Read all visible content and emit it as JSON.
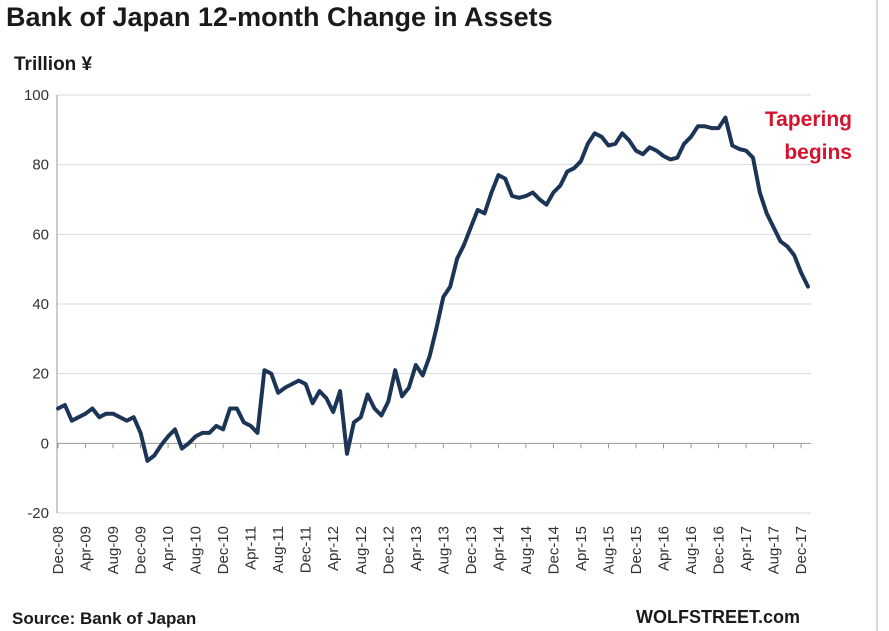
{
  "title": "Bank of Japan 12-month Change in Assets",
  "unit_label": "Trillion ¥",
  "source": "Source: Bank of Japan",
  "brand": "WOLFSTREET.com",
  "annotation": {
    "line1": "Tapering",
    "line2": "begins",
    "color": "#d4142f"
  },
  "colors": {
    "line": "#1c3557",
    "grid": "#d9d9d9",
    "axis": "#999999"
  },
  "chart_data": {
    "type": "line",
    "title": "Bank of Japan 12-month Change in Assets",
    "ylabel": "Trillion ¥",
    "xlabel": "",
    "ylim": [
      -20,
      100
    ],
    "yticks": [
      -20,
      0,
      20,
      40,
      60,
      80,
      100
    ],
    "grid": "horizontal",
    "x_tick_labels": [
      "Dec-08",
      "Apr-09",
      "Aug-09",
      "Dec-09",
      "Apr-10",
      "Aug-10",
      "Dec-10",
      "Apr-11",
      "Aug-11",
      "Dec-11",
      "Apr-12",
      "Aug-12",
      "Dec-12",
      "Apr-13",
      "Aug-13",
      "Dec-13",
      "Apr-14",
      "Aug-14",
      "Dec-14",
      "Apr-15",
      "Aug-15",
      "Dec-15",
      "Apr-16",
      "Aug-16",
      "Dec-16",
      "Apr-17",
      "Aug-17",
      "Dec-17"
    ],
    "series": [
      {
        "values": [
          10,
          11,
          6.5,
          7.5,
          8.5,
          10,
          7.5,
          8.5,
          8.5,
          7.5,
          6.5,
          7.5,
          3,
          -5,
          -3.5,
          -0.5,
          2,
          4,
          -1.5,
          0,
          2,
          3,
          3,
          5,
          4,
          10,
          10,
          6,
          5,
          3,
          21,
          20,
          14.5,
          16,
          17,
          18,
          17,
          11.5,
          15,
          13,
          9,
          15,
          -3,
          6,
          7.5,
          14,
          10,
          8,
          12,
          21,
          13.5,
          16,
          22.5,
          19.5,
          25,
          33,
          42,
          45,
          53,
          57,
          62,
          67,
          66,
          72,
          77,
          76,
          71,
          70.5,
          71,
          72,
          70,
          68.5,
          72,
          74,
          78,
          79,
          81,
          86,
          89,
          88,
          85.5,
          86,
          89,
          87,
          84,
          83,
          85,
          84,
          82.5,
          81.5,
          82,
          86,
          88,
          91,
          91,
          90.5,
          90.5,
          93.5,
          85.5,
          84.5,
          84,
          82,
          72,
          66,
          62,
          58,
          56.5,
          54,
          49,
          45
        ]
      }
    ]
  }
}
